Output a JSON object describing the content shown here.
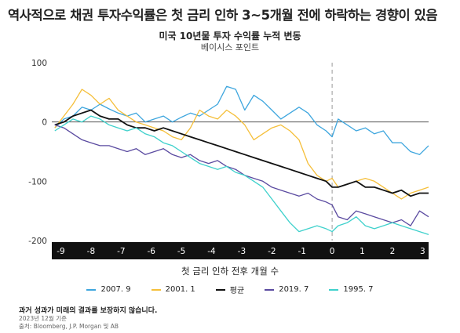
{
  "headline": "역사적으로 채권 투자수익률은 첫 금리 인하 3~5개월 전에 하락하는 경향이 있음",
  "disclaimer": "과거 성과가 미래의 결과를 보장하지 않습니다.",
  "date_note": "2023년 12월 기준",
  "source_note": "출처: Bloomberg, J.P. Morgan 및 AB",
  "chart_data": {
    "type": "line",
    "title": "미국 10년물 투자 수익률 누적 변동",
    "ylabel": "베이시스 포인트",
    "xlabel": "첫 금리 인하 전후 개월 수",
    "xlim": [
      -9.3,
      3.2
    ],
    "ylim": [
      -200,
      100
    ],
    "xticks": [
      -9,
      -8,
      -7,
      -6,
      -5,
      -4,
      -3,
      -2,
      -1,
      0,
      1,
      2,
      3
    ],
    "yticks": [
      100,
      0,
      -100,
      -200
    ],
    "zero_line": true,
    "reference_line_x": 0,
    "legend_position": "bottom",
    "series": [
      {
        "name": "2007. 9",
        "color": "#3ea6de",
        "x": [
          -9.2,
          -8.9,
          -8.6,
          -8.3,
          -8.0,
          -7.7,
          -7.4,
          -7.1,
          -6.8,
          -6.5,
          -6.2,
          -5.9,
          -5.6,
          -5.3,
          -5.0,
          -4.7,
          -4.4,
          -4.1,
          -3.8,
          -3.5,
          -3.2,
          -2.9,
          -2.6,
          -2.3,
          -2.0,
          -1.7,
          -1.4,
          -1.1,
          -0.8,
          -0.5,
          -0.2,
          0.0,
          0.2,
          0.5,
          0.8,
          1.1,
          1.4,
          1.7,
          2.0,
          2.3,
          2.6,
          2.9,
          3.2
        ],
        "y": [
          -10,
          5,
          10,
          25,
          20,
          30,
          22,
          15,
          10,
          15,
          0,
          5,
          10,
          0,
          8,
          15,
          10,
          20,
          30,
          60,
          55,
          20,
          45,
          35,
          20,
          5,
          15,
          25,
          15,
          -5,
          -15,
          -25,
          5,
          -5,
          -15,
          -10,
          -20,
          -15,
          -35,
          -35,
          -50,
          -55,
          -40
        ]
      },
      {
        "name": "2001. 1",
        "color": "#f5bf3a",
        "x": [
          -9.2,
          -8.9,
          -8.6,
          -8.3,
          -8.0,
          -7.7,
          -7.4,
          -7.1,
          -6.8,
          -6.5,
          -6.2,
          -5.9,
          -5.6,
          -5.3,
          -5.0,
          -4.7,
          -4.4,
          -4.1,
          -3.8,
          -3.5,
          -3.2,
          -2.9,
          -2.6,
          -2.3,
          -2.0,
          -1.7,
          -1.4,
          -1.1,
          -0.8,
          -0.5,
          -0.2,
          0.0,
          0.2,
          0.5,
          0.8,
          1.1,
          1.4,
          1.7,
          2.0,
          2.3,
          2.6,
          2.9,
          3.2
        ],
        "y": [
          -10,
          10,
          30,
          55,
          45,
          30,
          40,
          20,
          10,
          0,
          -5,
          -10,
          -15,
          -25,
          -30,
          -10,
          20,
          10,
          5,
          20,
          10,
          -5,
          -30,
          -20,
          -10,
          -5,
          -15,
          -30,
          -70,
          -90,
          -100,
          -95,
          -110,
          -105,
          -100,
          -95,
          -100,
          -110,
          -120,
          -130,
          -120,
          -115,
          -110
        ]
      },
      {
        "name": "평균",
        "color": "#111111",
        "x": [
          -9.2,
          -8.9,
          -8.6,
          -8.3,
          -8.0,
          -7.7,
          -7.4,
          -7.1,
          -6.8,
          -6.5,
          -6.2,
          -5.9,
          -5.6,
          -5.3,
          -5.0,
          -4.7,
          -4.4,
          -4.1,
          -3.8,
          -3.5,
          -3.2,
          -2.9,
          -2.6,
          -2.3,
          -2.0,
          -1.7,
          -1.4,
          -1.1,
          -0.8,
          -0.5,
          -0.2,
          0.0,
          0.2,
          0.5,
          0.8,
          1.1,
          1.4,
          1.7,
          2.0,
          2.3,
          2.6,
          2.9,
          3.2
        ],
        "y": [
          -5,
          0,
          10,
          15,
          20,
          10,
          5,
          5,
          -5,
          -10,
          -10,
          -15,
          -10,
          -15,
          -20,
          -25,
          -30,
          -35,
          -40,
          -45,
          -50,
          -55,
          -60,
          -65,
          -70,
          -75,
          -80,
          -85,
          -90,
          -95,
          -100,
          -110,
          -110,
          -105,
          -100,
          -110,
          -110,
          -115,
          -120,
          -115,
          -125,
          -120,
          -120
        ]
      },
      {
        "name": "2019. 7",
        "color": "#5a4aa0",
        "x": [
          -9.2,
          -8.9,
          -8.6,
          -8.3,
          -8.0,
          -7.7,
          -7.4,
          -7.1,
          -6.8,
          -6.5,
          -6.2,
          -5.9,
          -5.6,
          -5.3,
          -5.0,
          -4.7,
          -4.4,
          -4.1,
          -3.8,
          -3.5,
          -3.2,
          -2.9,
          -2.6,
          -2.3,
          -2.0,
          -1.7,
          -1.4,
          -1.1,
          -0.8,
          -0.5,
          -0.2,
          0.0,
          0.2,
          0.5,
          0.8,
          1.1,
          1.4,
          1.7,
          2.0,
          2.3,
          2.6,
          2.9,
          3.2
        ],
        "y": [
          -5,
          -10,
          -20,
          -30,
          -35,
          -40,
          -40,
          -45,
          -50,
          -45,
          -55,
          -50,
          -45,
          -55,
          -60,
          -55,
          -65,
          -70,
          -65,
          -75,
          -80,
          -90,
          -95,
          -100,
          -110,
          -115,
          -120,
          -125,
          -120,
          -130,
          -135,
          -140,
          -160,
          -165,
          -150,
          -155,
          -160,
          -165,
          -170,
          -165,
          -175,
          -150,
          -160
        ]
      },
      {
        "name": "1995. 7",
        "color": "#3fd1cc",
        "x": [
          -9.2,
          -8.9,
          -8.6,
          -8.3,
          -8.0,
          -7.7,
          -7.4,
          -7.1,
          -6.8,
          -6.5,
          -6.2,
          -5.9,
          -5.6,
          -5.3,
          -5.0,
          -4.7,
          -4.4,
          -4.1,
          -3.8,
          -3.5,
          -3.2,
          -2.9,
          -2.6,
          -2.3,
          -2.0,
          -1.7,
          -1.4,
          -1.1,
          -0.8,
          -0.5,
          -0.2,
          0.0,
          0.2,
          0.5,
          0.8,
          1.1,
          1.4,
          1.7,
          2.0,
          2.3,
          2.6,
          2.9,
          3.2
        ],
        "y": [
          -15,
          -5,
          5,
          0,
          10,
          5,
          -5,
          -10,
          -15,
          -10,
          -20,
          -25,
          -35,
          -40,
          -50,
          -60,
          -70,
          -75,
          -80,
          -75,
          -85,
          -90,
          -100,
          -110,
          -130,
          -150,
          -170,
          -185,
          -180,
          -175,
          -180,
          -185,
          -175,
          -170,
          -160,
          -175,
          -180,
          -175,
          -170,
          -175,
          -180,
          -185,
          -190
        ]
      }
    ]
  }
}
